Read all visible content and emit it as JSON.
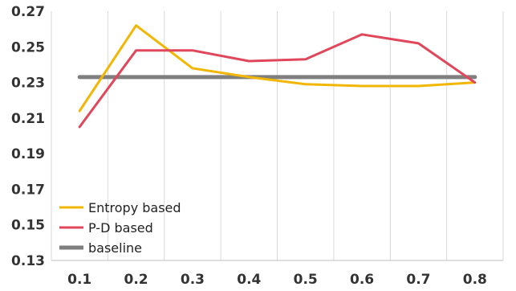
{
  "chart_data": {
    "type": "line",
    "x": [
      "0.1",
      "0.2",
      "0.3",
      "0.4",
      "0.5",
      "0.6",
      "0.7",
      "0.8"
    ],
    "series": [
      {
        "name": "Entropy based",
        "color": "#F2B705",
        "values": [
          0.214,
          0.262,
          0.238,
          0.233,
          0.229,
          0.228,
          0.228,
          0.23
        ]
      },
      {
        "name": "P-D based",
        "color": "#E0475B",
        "values": [
          0.205,
          0.248,
          0.248,
          0.242,
          0.243,
          0.257,
          0.252,
          0.23
        ]
      },
      {
        "name": "baseline",
        "color": "#7F7F7F",
        "values": [
          0.233,
          0.233,
          0.233,
          0.233,
          0.233,
          0.233,
          0.233,
          0.233
        ]
      }
    ],
    "yticks": [
      "0.13",
      "0.15",
      "0.17",
      "0.19",
      "0.21",
      "0.23",
      "0.25",
      "0.27"
    ],
    "ylim": [
      0.13,
      0.27
    ],
    "title": "",
    "xlabel": "",
    "ylabel": "",
    "grid": "vertical",
    "legend_position": "bottom-left"
  }
}
